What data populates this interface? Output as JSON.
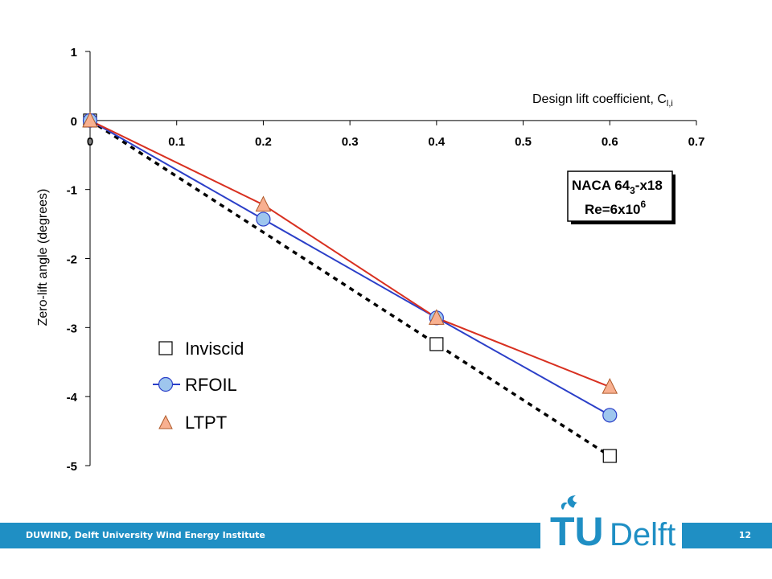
{
  "chart_data": {
    "type": "line",
    "xlabel_prefix": "Design lift coefficient, C",
    "xlabel_sub": "l,i",
    "ylabel": "Zero-lift angle (degrees)",
    "xlim": [
      0,
      0.7
    ],
    "ylim": [
      -5,
      1
    ],
    "x_ticks": [
      "0",
      "0.1",
      "0.2",
      "0.3",
      "0.4",
      "0.5",
      "0.6",
      "0.7"
    ],
    "y_ticks": [
      "1",
      "0",
      "-1",
      "-2",
      "-3",
      "-4",
      "-5"
    ],
    "series": [
      {
        "name": "Inviscid",
        "x": [
          0,
          0.4,
          0.6
        ],
        "y": [
          0,
          -3.24,
          -4.86
        ],
        "marker": "square",
        "line_color": "#000000",
        "line_style": "dashed",
        "fill": "#ffffff"
      },
      {
        "name": "RFOIL",
        "x": [
          0,
          0.2,
          0.4,
          0.6
        ],
        "y": [
          0,
          -1.43,
          -2.86,
          -4.27
        ],
        "marker": "circle",
        "line_color": "#2b3fc8",
        "line_style": "solid",
        "fill": "#9ec6ee"
      },
      {
        "name": "LTPT",
        "x": [
          0,
          0.2,
          0.4,
          0.6
        ],
        "y": [
          0,
          -1.22,
          -2.86,
          -3.86
        ],
        "marker": "triangle",
        "line_color": "#d83020",
        "line_style": "solid",
        "fill": "#f8b090"
      }
    ],
    "annotation_line1_prefix": "NACA 64",
    "annotation_line1_sub": "3",
    "annotation_line1_suffix": "-x18",
    "annotation_line2_prefix": "Re=6x10",
    "annotation_line2_sup": "6",
    "legend_position": "lower-left inside"
  },
  "footer": {
    "institute": "DUWIND, Delft University Wind Energy Institute",
    "page_number": "12",
    "logo_text_tu": "TU",
    "logo_text_delft": "Delft",
    "bar_color": "#1f8fc4",
    "logo_color": "#1f8fc4"
  }
}
